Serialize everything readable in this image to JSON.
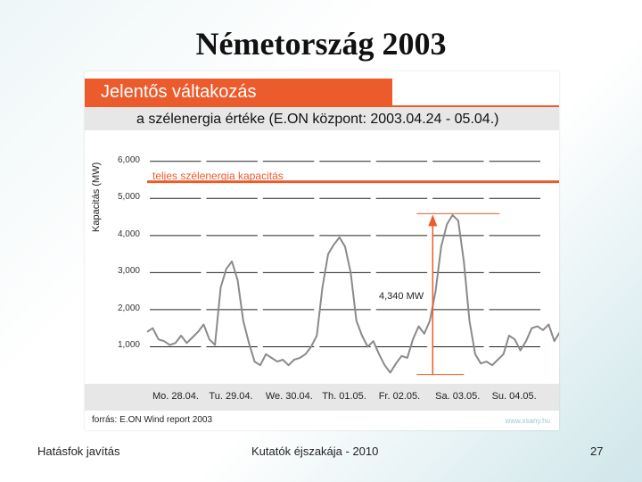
{
  "slide": {
    "title": "Németország 2003",
    "footer_left": "Hatásfok javítás",
    "footer_center": "Kutatók éjszakája - 2010",
    "page_number": "27"
  },
  "figure": {
    "header": "Jelentős váltakozás",
    "subheader": "a szélenergia értéke (E.ON központ: 2003.04.24 - 05.04.)",
    "source": "forrás: E.ON Wind report 2003",
    "watermark": "www.xsany.hu",
    "colors": {
      "accent": "#ec5b2c",
      "line": "#8a8a8a",
      "bar": "#e7e7e8"
    }
  },
  "chart_data": {
    "type": "line",
    "title": "",
    "xlabel": "",
    "ylabel": "Kapacitás (MW)",
    "ylim": [
      0,
      6500
    ],
    "yticks": [
      1000,
      2000,
      3000,
      4000,
      5000,
      6000
    ],
    "ytick_labels": [
      "1,000",
      "2,000",
      "3,000",
      "4,000",
      "5,000",
      "6,000"
    ],
    "categories": [
      "Mo. 28.04.",
      "Tu. 29.04.",
      "We. 30.04.",
      "Th. 01.05.",
      "Fr. 02.05.",
      "Sa. 03.05.",
      "Su. 04.05."
    ],
    "capacity_line": {
      "label": "teljes szélenergia kapacitás",
      "value": 5450
    },
    "annotation": {
      "label": "4,340 MW",
      "low": 250,
      "high": 4590
    },
    "series": [
      {
        "x": [
          0.0,
          0.1,
          0.2,
          0.3,
          0.4,
          0.5,
          0.6,
          0.7,
          0.8,
          0.9,
          1.0,
          1.1,
          1.2,
          1.3,
          1.4,
          1.5,
          1.6,
          1.7,
          1.8,
          1.9,
          2.0,
          2.1,
          2.2,
          2.3,
          2.4,
          2.5,
          2.6,
          2.7,
          2.8,
          2.9,
          3.0,
          3.1,
          3.2,
          3.3,
          3.4,
          3.5,
          3.6,
          3.7,
          3.8,
          3.9,
          4.0,
          4.1,
          4.2,
          4.3,
          4.4,
          4.5,
          4.6,
          4.7,
          4.8,
          4.9,
          5.0,
          5.1,
          5.2,
          5.3,
          5.4,
          5.5,
          5.6,
          5.7,
          5.8,
          5.9,
          6.0,
          6.1,
          6.2,
          6.3,
          6.4,
          6.5,
          6.6,
          6.7,
          6.8,
          6.9,
          7.0,
          7.1,
          7.2,
          7.3,
          7.4,
          7.5,
          7.6,
          7.7
        ],
        "values": [
          1400,
          1500,
          1200,
          1150,
          1050,
          1100,
          1300,
          1100,
          1250,
          1400,
          1600,
          1200,
          1050,
          2600,
          3100,
          3300,
          2800,
          1700,
          1100,
          600,
          500,
          800,
          700,
          600,
          650,
          500,
          650,
          700,
          800,
          1000,
          1300,
          2600,
          3500,
          3750,
          3950,
          3700,
          3000,
          1700,
          1300,
          1000,
          1150,
          800,
          500,
          300,
          550,
          750,
          700,
          1200,
          1550,
          1350,
          1700,
          2500,
          3700,
          4300,
          4550,
          4400,
          3300,
          1700,
          800,
          550,
          600,
          500,
          650,
          800,
          1300,
          1200,
          900,
          1150,
          1500,
          1550,
          1450,
          1600,
          1150,
          1400,
          1450,
          1500,
          1750,
          1900
        ]
      }
    ]
  }
}
